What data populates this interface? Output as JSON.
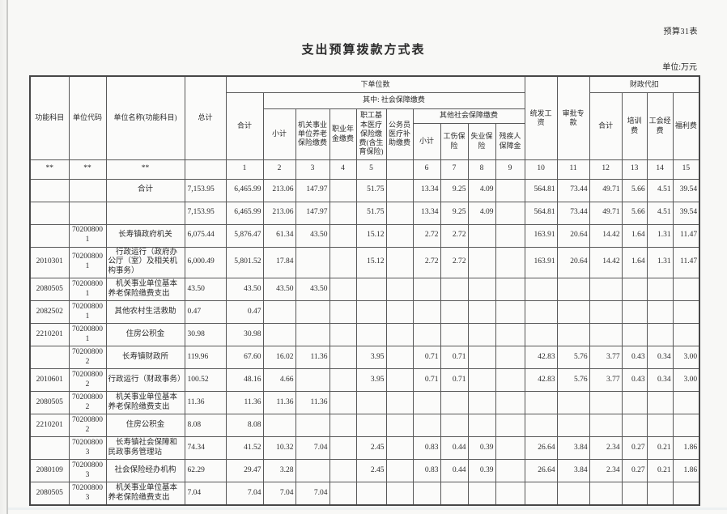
{
  "page": {
    "sheet_label": "预算31表",
    "title": "支出预算拨款方式表",
    "unit_note": "单位:万元"
  },
  "table": {
    "headers": {
      "function_subject": "功能科目",
      "unit_code": "单位代码",
      "unit_name": "单位名称(功能科目)",
      "grand_total": "总计",
      "sub_units": "下单位数",
      "total": "合计",
      "social_security_group": "其中: 社会保障缴费",
      "subtotal": "小计",
      "pension": "机关事业单位养老保险缴费",
      "annuity": "职业年金缴费",
      "medical": "职工基本医疗保险缴费(含生育保险)",
      "civil_servant_medical": "公务员医疗补助缴费",
      "other_social_group": "其他社会保障缴费",
      "other_subtotal": "小计",
      "injury_insurance": "工伤保险",
      "unemployment_insurance": "失业保险",
      "disability_fund": "残疾人保障金",
      "unified_wages": "统发工资",
      "approved_funds": "审批专款",
      "fiscal_withholding": "财政代扣",
      "withholding_total": "合计",
      "training_fee": "培训费",
      "union_fee": "工会经费",
      "welfare_fee": "福利费"
    },
    "code_row": [
      "**",
      "**",
      "**",
      "",
      "1",
      "2",
      "3",
      "4",
      "5",
      "",
      "6",
      "7",
      "8",
      "9",
      "10",
      "11",
      "12",
      "13",
      "14",
      "15"
    ],
    "rows": [
      [
        "",
        "",
        "合计",
        "7,153.95",
        "6,465.99",
        "213.06",
        "147.97",
        "",
        "51.75",
        "",
        "13.34",
        "9.25",
        "4.09",
        "",
        "564.81",
        "73.44",
        "49.71",
        "5.66",
        "4.51",
        "39.54"
      ],
      [
        "",
        "",
        "",
        "7,153.95",
        "6,465.99",
        "213.06",
        "147.97",
        "",
        "51.75",
        "",
        "13.34",
        "9.25",
        "4.09",
        "",
        "564.81",
        "73.44",
        "49.71",
        "5.66",
        "4.51",
        "39.54"
      ],
      [
        "",
        "702008001",
        "长寿镇政府机关",
        "6,075.44",
        "5,876.47",
        "61.34",
        "43.50",
        "",
        "15.12",
        "",
        "2.72",
        "2.72",
        "",
        "",
        "163.91",
        "20.64",
        "14.42",
        "1.64",
        "1.31",
        "11.47"
      ],
      [
        "2010301",
        "702008001",
        "行政运行（政府办公厅（室）及相关机构事务）",
        "6,000.49",
        "5,801.52",
        "17.84",
        "",
        "",
        "15.12",
        "",
        "2.72",
        "2.72",
        "",
        "",
        "163.91",
        "20.64",
        "14.42",
        "1.64",
        "1.31",
        "11.47"
      ],
      [
        "2080505",
        "702008001",
        "机关事业单位基本养老保险缴费支出",
        "43.50",
        "43.50",
        "43.50",
        "43.50",
        "",
        "",
        "",
        "",
        "",
        "",
        "",
        "",
        "",
        "",
        "",
        "",
        ""
      ],
      [
        "2082502",
        "702008001",
        "其他农村生活救助",
        "0.47",
        "0.47",
        "",
        "",
        "",
        "",
        "",
        "",
        "",
        "",
        "",
        "",
        "",
        "",
        "",
        "",
        ""
      ],
      [
        "2210201",
        "702008001",
        "住房公积金",
        "30.98",
        "30.98",
        "",
        "",
        "",
        "",
        "",
        "",
        "",
        "",
        "",
        "",
        "",
        "",
        "",
        "",
        ""
      ],
      [
        "",
        "702008002",
        "长寿镇财政所",
        "119.96",
        "67.60",
        "16.02",
        "11.36",
        "",
        "3.95",
        "",
        "0.71",
        "0.71",
        "",
        "",
        "42.83",
        "5.76",
        "3.77",
        "0.43",
        "0.34",
        "3.00"
      ],
      [
        "2010601",
        "702008002",
        "行政运行（财政事务）",
        "100.52",
        "48.16",
        "4.66",
        "",
        "",
        "3.95",
        "",
        "0.71",
        "0.71",
        "",
        "",
        "42.83",
        "5.76",
        "3.77",
        "0.43",
        "0.34",
        "3.00"
      ],
      [
        "2080505",
        "702008002",
        "机关事业单位基本养老保险缴费支出",
        "11.36",
        "11.36",
        "11.36",
        "11.36",
        "",
        "",
        "",
        "",
        "",
        "",
        "",
        "",
        "",
        "",
        "",
        "",
        ""
      ],
      [
        "2210201",
        "702008002",
        "住房公积金",
        "8.08",
        "8.08",
        "",
        "",
        "",
        "",
        "",
        "",
        "",
        "",
        "",
        "",
        "",
        "",
        "",
        "",
        ""
      ],
      [
        "",
        "702008003",
        "长寿镇社会保障和民政事务管理站",
        "74.34",
        "41.52",
        "10.32",
        "7.04",
        "",
        "2.45",
        "",
        "0.83",
        "0.44",
        "0.39",
        "",
        "26.64",
        "3.84",
        "2.34",
        "0.27",
        "0.21",
        "1.86"
      ],
      [
        "2080109",
        "702008003",
        "社会保险经办机构",
        "62.29",
        "29.47",
        "3.28",
        "",
        "",
        "2.45",
        "",
        "0.83",
        "0.44",
        "0.39",
        "",
        "26.64",
        "3.84",
        "2.34",
        "0.27",
        "0.21",
        "1.86"
      ],
      [
        "2080505",
        "702008003",
        "机关事业单位基本养老保险缴费支出",
        "7.04",
        "7.04",
        "7.04",
        "7.04",
        "",
        "",
        "",
        "",
        "",
        "",
        "",
        "",
        "",
        "",
        "",
        "",
        ""
      ]
    ]
  }
}
